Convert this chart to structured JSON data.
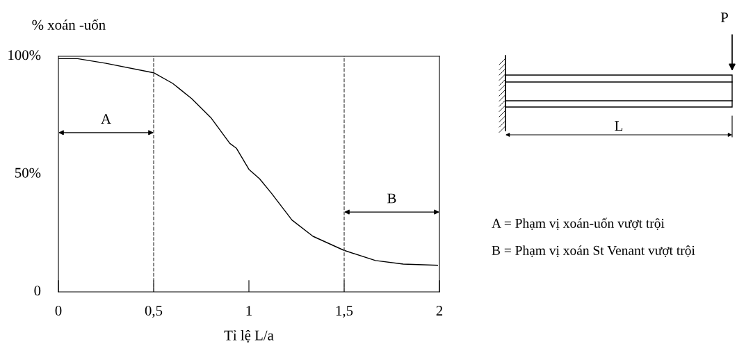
{
  "chart_data": {
    "type": "line",
    "xlabel": "Tỉ lệ L/a",
    "ylabel": "% xoán -uốn",
    "x": [
      0,
      0.1,
      0.25,
      0.5,
      0.6,
      0.7,
      0.8,
      0.9,
      0.934,
      1.0,
      1.056,
      1.117,
      1.226,
      1.336,
      1.497,
      1.664,
      1.81,
      1.99
    ],
    "series": [
      {
        "color": "#000000",
        "values": [
          99,
          99,
          97,
          93,
          88.5,
          82,
          74,
          63,
          61,
          52,
          48,
          42,
          30.5,
          23.6,
          17.7,
          13.3,
          11.8,
          11.3
        ]
      }
    ],
    "xlim": [
      0,
      2
    ],
    "ylim": [
      0,
      100
    ],
    "xticks": [
      0,
      {
        "value": 0.5,
        "label": "0,5"
      },
      1,
      {
        "value": 1.5,
        "label": "1,5"
      },
      2
    ],
    "yticks": [
      0,
      {
        "value": 50,
        "label": "50%"
      },
      {
        "value": 100,
        "label": "100%"
      }
    ],
    "ref_lines": [
      {
        "axis": "x",
        "value": 0.5,
        "line_style": "dashed"
      },
      {
        "axis": "x",
        "value": 1.5,
        "line_style": "dashed"
      }
    ],
    "annotations": [
      "P",
      "L",
      "A = Phạm vị xoán-uốn vượt trội",
      "B = Phạm vị xoán St Venant vượt trội",
      "A",
      "B"
    ],
    "grid": false,
    "legend": false,
    "marker": "none",
    "line_style": "solid"
  }
}
